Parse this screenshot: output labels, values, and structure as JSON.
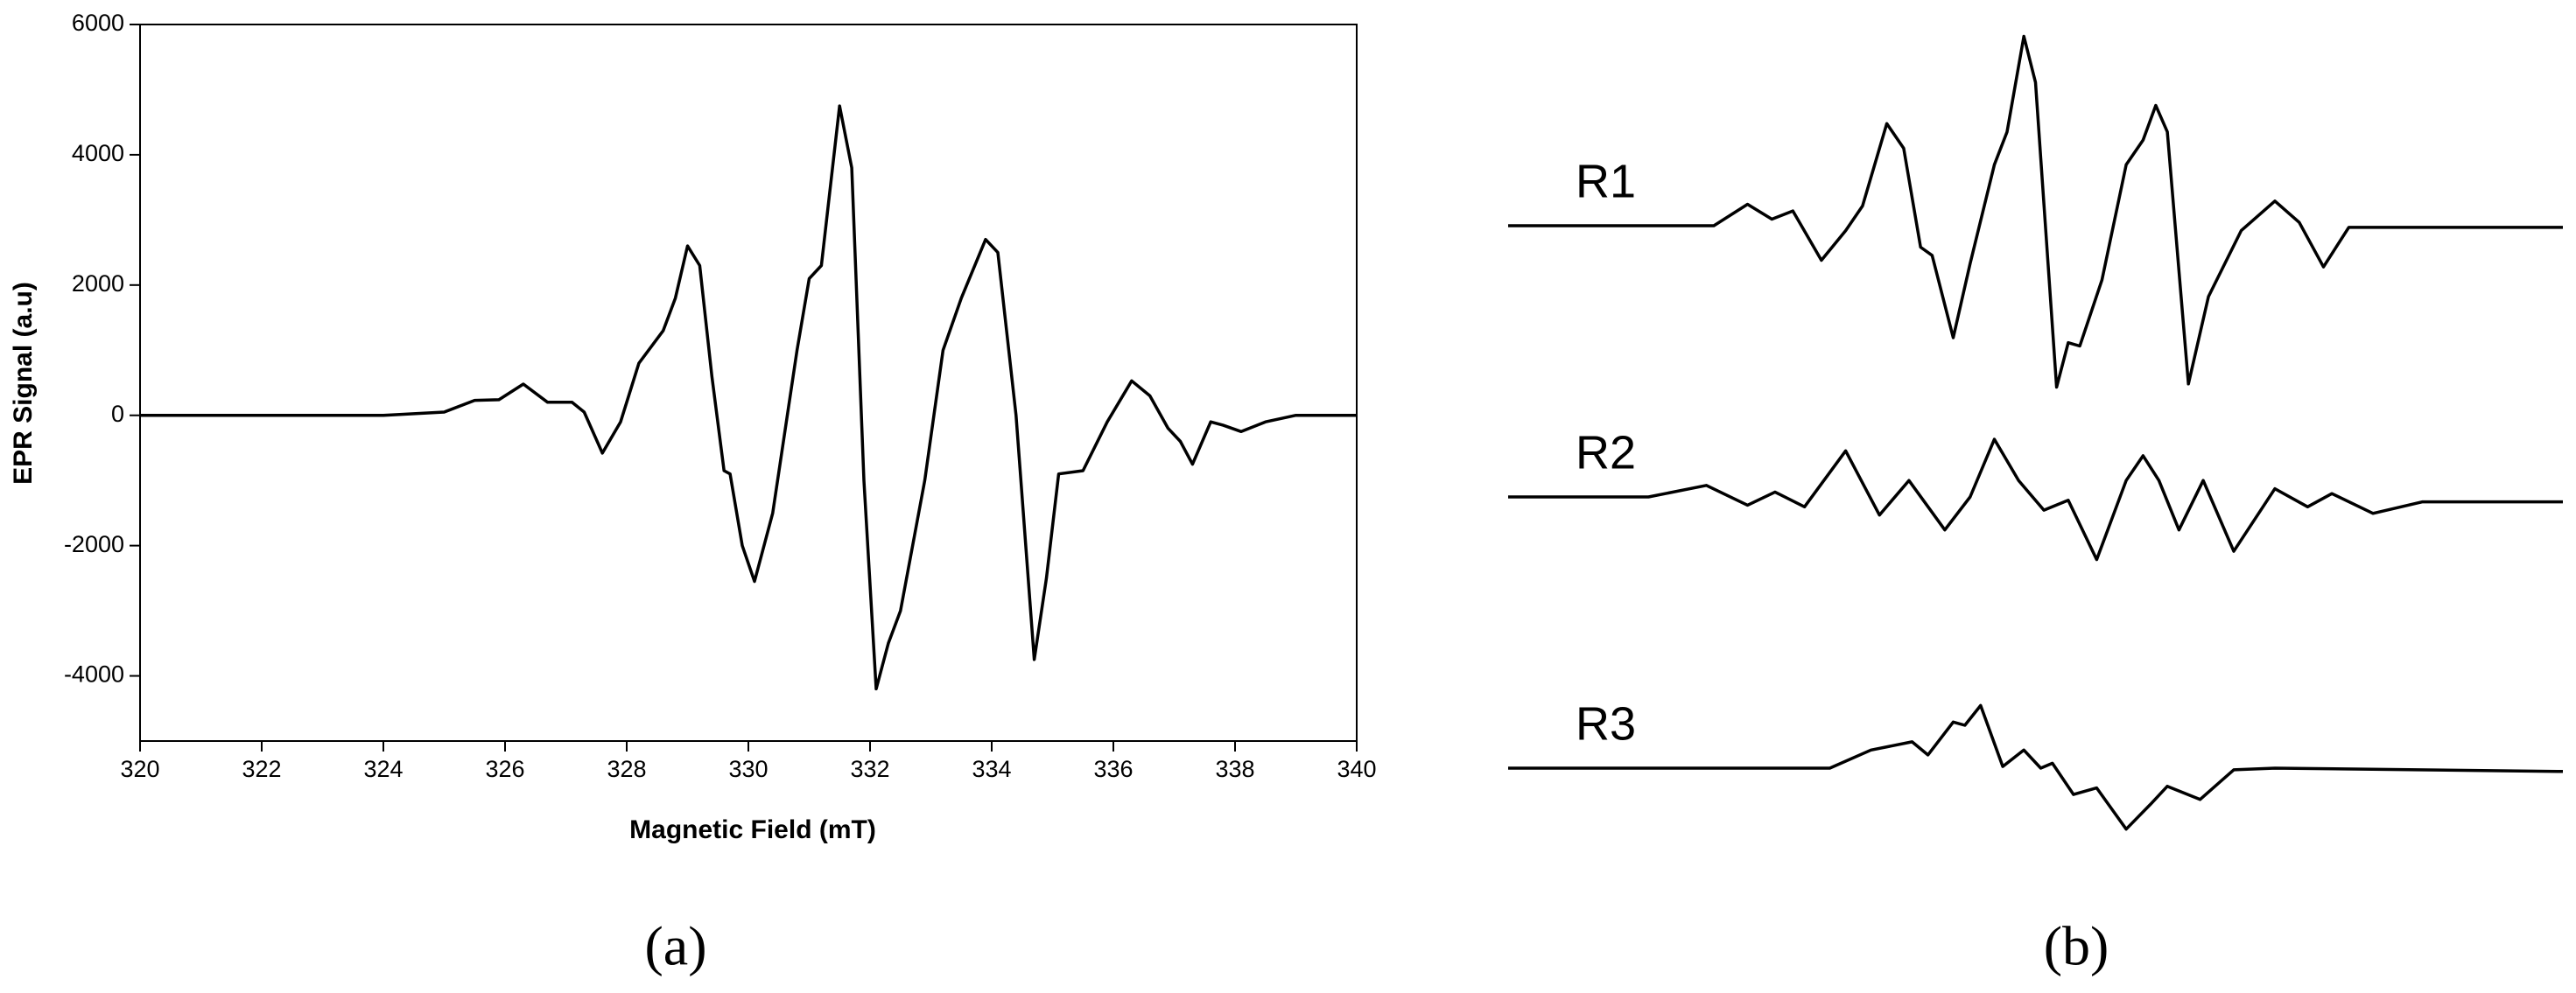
{
  "chart_data": [
    {
      "type": "line",
      "caption": "(a)",
      "xlabel": "Magnetic Field (mT)",
      "ylabel": "EPR Signal (a.u)",
      "xlim": [
        320,
        340
      ],
      "xticks": [
        320,
        322,
        324,
        326,
        328,
        330,
        332,
        334,
        336,
        338,
        340
      ],
      "ylim": [
        -5000,
        6000
      ],
      "yticks": [
        -4000,
        -2000,
        0,
        2000,
        4000,
        6000
      ],
      "x": [
        320,
        324,
        325,
        325.5,
        325.9,
        326.3,
        326.7,
        327.1,
        327.3,
        327.6,
        327.9,
        328.2,
        328.6,
        328.8,
        329.0,
        329.2,
        329.4,
        329.6,
        329.7,
        329.9,
        330.1,
        330.4,
        330.8,
        331.0,
        331.2,
        331.5,
        331.7,
        331.9,
        332.1,
        332.3,
        332.5,
        332.9,
        333.2,
        333.5,
        333.9,
        334.1,
        334.4,
        334.7,
        334.9,
        335.1,
        335.5,
        335.9,
        336.3,
        336.6,
        336.9,
        337.1,
        337.3,
        337.6,
        337.8,
        338.1,
        338.5,
        339,
        340
      ],
      "series": [
        {
          "color": "#000000",
          "values": [
            0,
            0,
            50,
            230,
            240,
            480,
            200,
            200,
            50,
            -580,
            -100,
            800,
            1300,
            1800,
            2600,
            2300,
            600,
            -850,
            -900,
            -2000,
            -2550,
            -1500,
            1000,
            2100,
            2300,
            4750,
            3800,
            -1000,
            -4200,
            -3500,
            -3000,
            -1000,
            1000,
            1800,
            2700,
            2500,
            0,
            -3750,
            -2500,
            -900,
            -850,
            -100,
            530,
            300,
            -200,
            -400,
            -750,
            -100,
            -150,
            -250,
            -100,
            0,
            0
          ]
        }
      ]
    },
    {
      "type": "traces",
      "caption": "(b)",
      "series": [
        {
          "name": "R1",
          "color": "#000000",
          "x": [
            0,
            19.5,
            22.7,
            25,
            27,
            29.7,
            32,
            33.6,
            35.9,
            37.5,
            39.1,
            40.2,
            42.2,
            43.8,
            46.1,
            47.3,
            48.9,
            50,
            52,
            53.1,
            54.2,
            56.3,
            58.6,
            60.2,
            61.4,
            62.5,
            64.5,
            66.4,
            69.5,
            72.7,
            75,
            77.3,
            79.7,
            100
          ],
          "values": [
            0,
            0,
            13,
            4,
            9,
            -21,
            -3,
            12,
            62,
            47,
            -13,
            -18,
            -68,
            -23,
            37,
            57,
            115,
            87,
            -98,
            -71,
            -73,
            -33,
            37,
            52,
            73,
            57,
            -96,
            -43,
            -3,
            15,
            2,
            -25,
            -1,
            -1
          ]
        },
        {
          "name": "R2",
          "color": "#000000",
          "x": [
            0,
            13.3,
            18.8,
            22.7,
            25.3,
            28.1,
            32,
            35.2,
            38,
            41.4,
            43.8,
            46.1,
            48.4,
            50.8,
            53.1,
            55.8,
            58.6,
            60.2,
            61.7,
            63.6,
            65.9,
            68.8,
            72.7,
            75.8,
            78.1,
            82,
            86.7,
            100
          ],
          "values": [
            0,
            0,
            7,
            -5,
            3,
            -6,
            28,
            -11,
            10,
            -20,
            0,
            35,
            10,
            -8,
            -2,
            -38,
            10,
            25,
            10,
            -20,
            10,
            -33,
            5,
            -6,
            2,
            -10,
            -3,
            -3
          ]
        },
        {
          "name": "R3",
          "color": "#000000",
          "x": [
            0,
            30.5,
            34.4,
            38.3,
            39.8,
            42.2,
            43.3,
            44.8,
            46.9,
            48.9,
            50.5,
            51.6,
            53.6,
            55.8,
            58.6,
            60.9,
            62.5,
            65.6,
            68.8,
            72.7,
            100
          ],
          "values": [
            0,
            0,
            11,
            16,
            8,
            28,
            26,
            38,
            1,
            11,
            0,
            3,
            -16,
            -12,
            -37,
            -22,
            -11,
            -19,
            -1,
            0,
            -2
          ]
        }
      ]
    }
  ]
}
